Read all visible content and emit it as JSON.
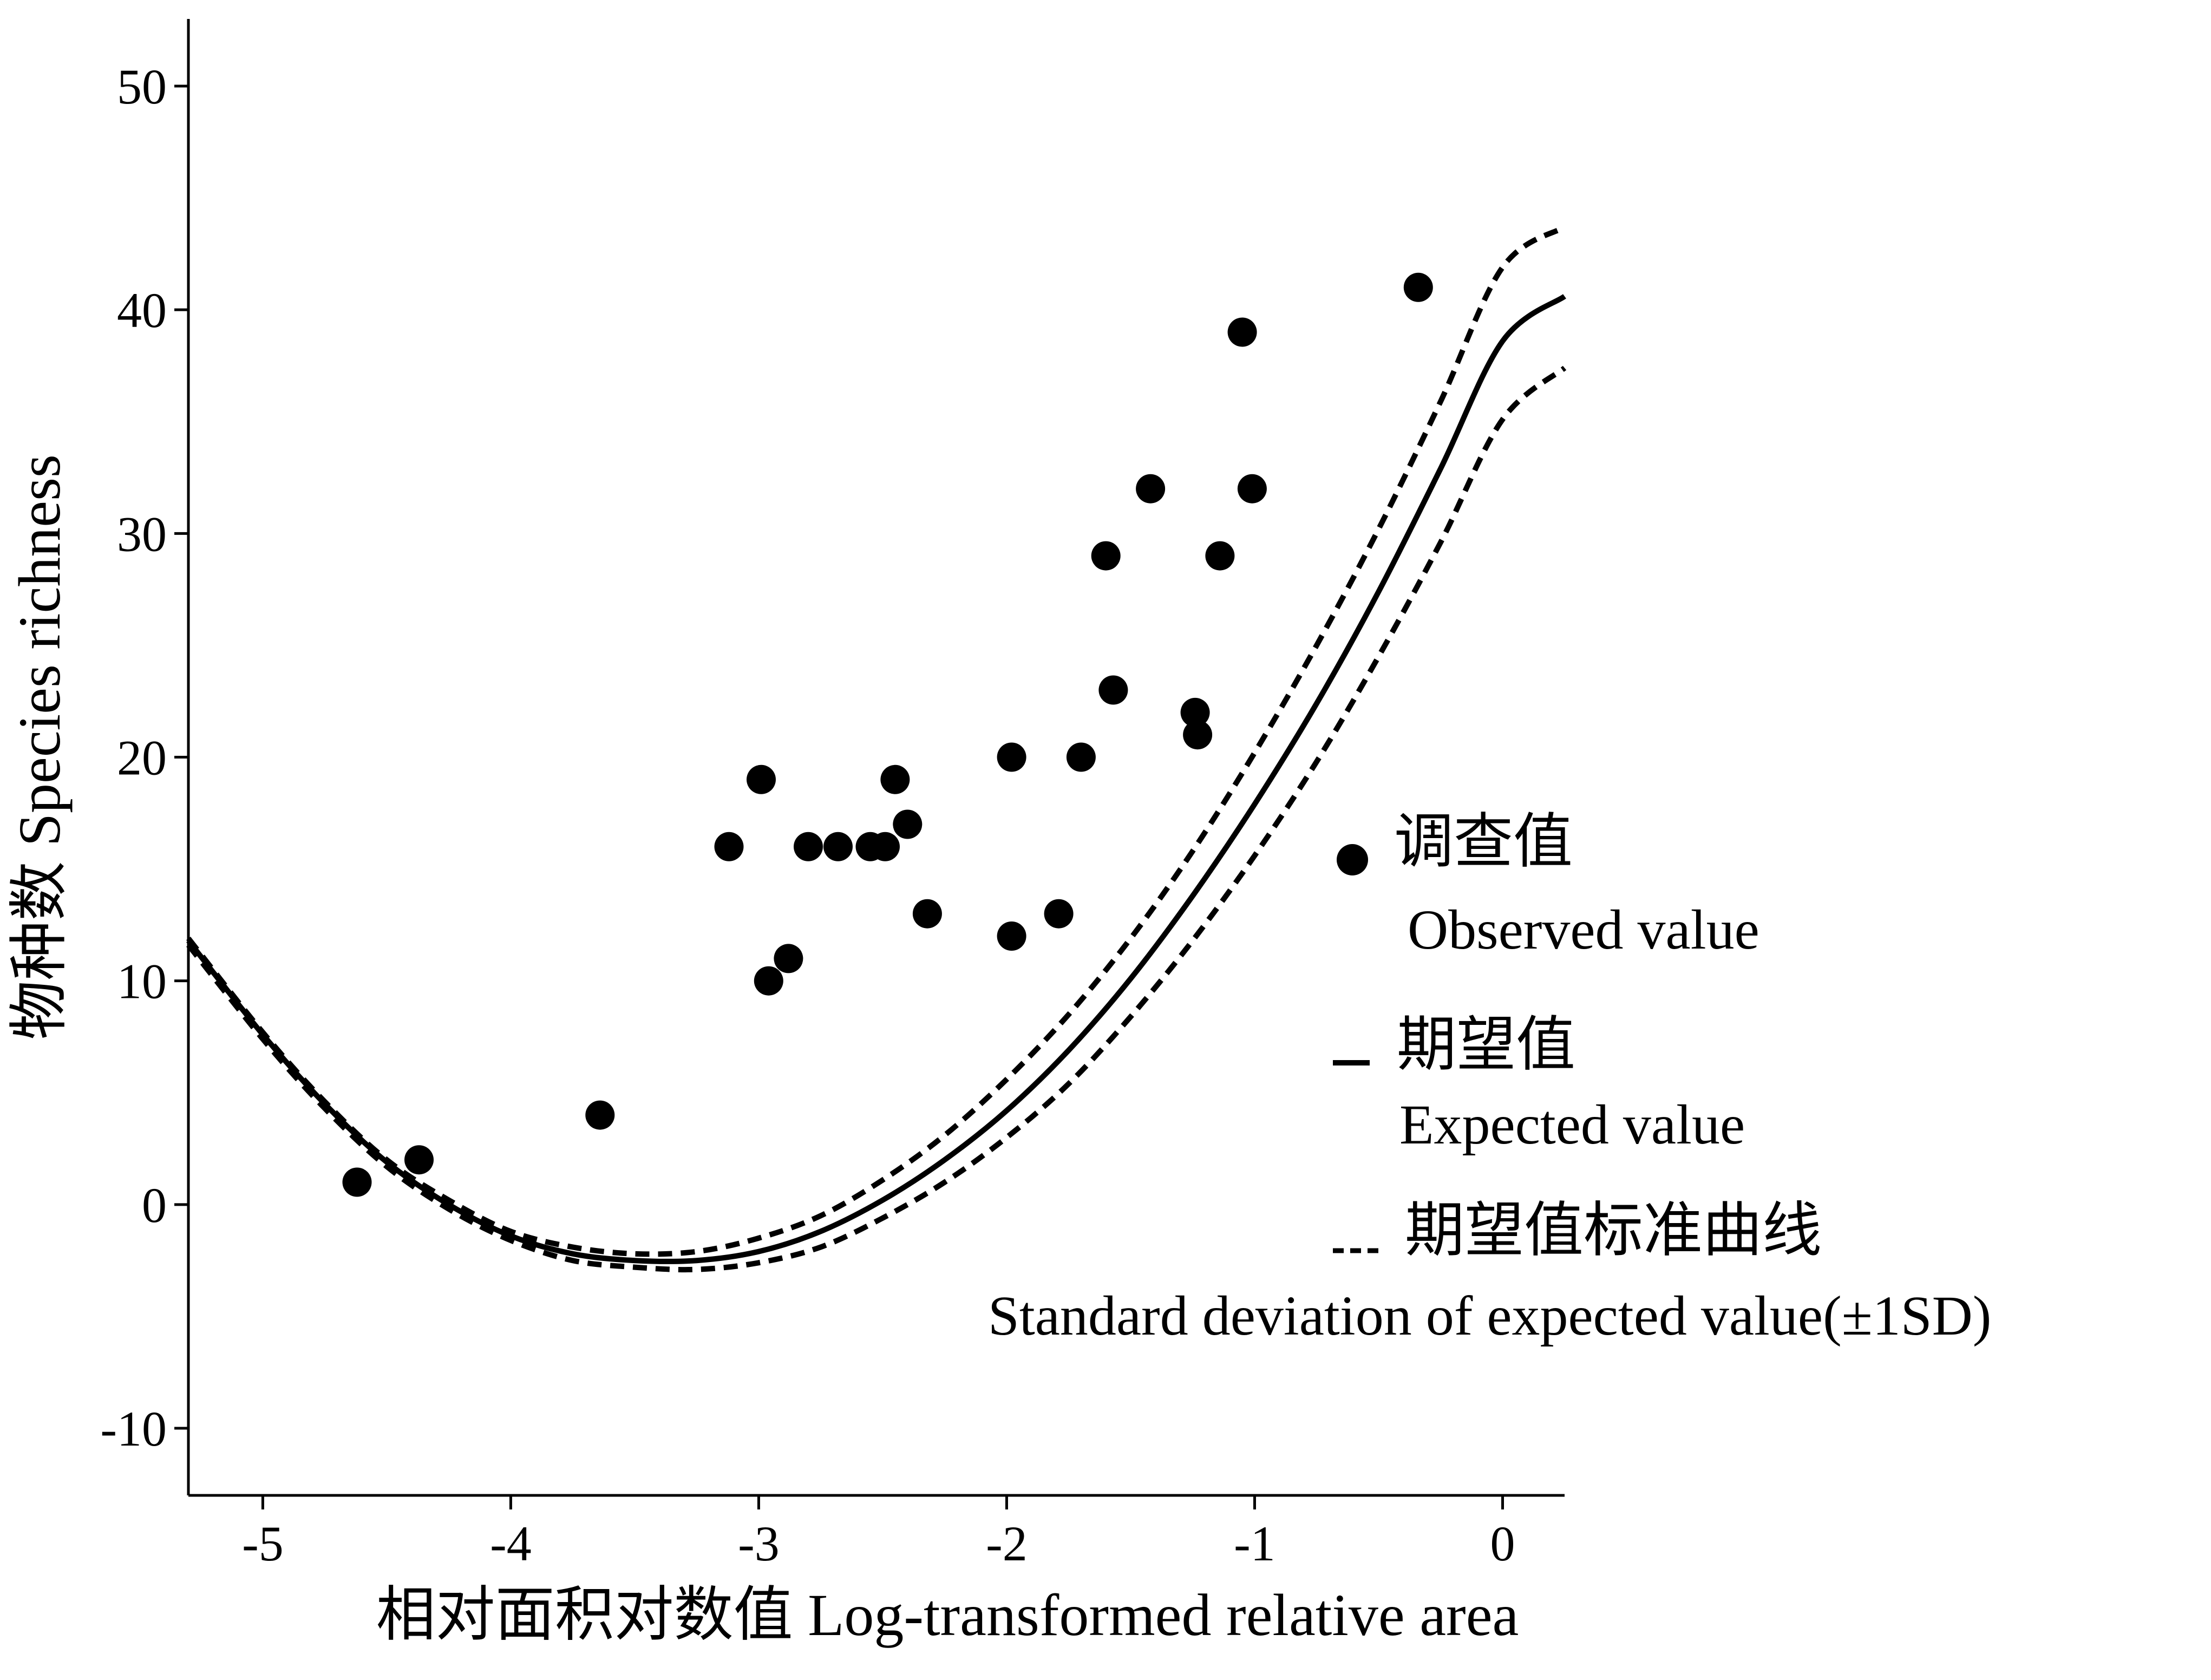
{
  "chart_data": {
    "type": "scatter",
    "title": "",
    "xlabel": "相对面积对数值  Log-transformed relative area",
    "ylabel": "物种数 Species richness",
    "xlim": [
      -5.3,
      0.25
    ],
    "ylim": [
      -13,
      53
    ],
    "xticks": [
      -5,
      -4,
      -3,
      -2,
      -1,
      0
    ],
    "xtick_labels": [
      "-5",
      "-4",
      "-3",
      "-2",
      "-1",
      "0"
    ],
    "yticks": [
      -10,
      0,
      10,
      20,
      30,
      40,
      50
    ],
    "ytick_labels": [
      "-10",
      "0",
      "10",
      "20",
      "30",
      "40",
      "50"
    ],
    "grid": false,
    "legend_position": "right",
    "observed": {
      "name": "调查值 Observed value",
      "x": [
        -4.62,
        -4.37,
        -3.64,
        -3.12,
        -2.99,
        -2.96,
        -2.88,
        -2.8,
        -2.68,
        -2.55,
        -2.49,
        -2.45,
        -2.4,
        -2.32,
        -1.98,
        -1.98,
        -1.79,
        -1.7,
        -1.6,
        -1.57,
        -1.42,
        -1.24,
        -1.23,
        -1.14,
        -1.05,
        -1.01,
        -0.34
      ],
      "y": [
        1,
        2,
        4,
        16,
        19,
        10,
        11,
        16,
        16,
        16,
        16,
        19,
        17,
        13,
        20,
        12,
        13,
        20,
        29,
        23,
        32,
        22,
        21,
        29,
        39,
        32,
        41
      ]
    },
    "expected": {
      "name": "期望值 Expected value",
      "type": "line",
      "style": "solid",
      "x": [
        -5.3,
        -5.0,
        -4.75,
        -4.5,
        -4.25,
        -4.0,
        -3.75,
        -3.5,
        -3.25,
        -3.0,
        -2.75,
        -2.5,
        -2.25,
        -2.0,
        -1.75,
        -1.5,
        -1.25,
        -1.0,
        -0.75,
        -0.5,
        -0.25,
        0.0,
        0.25
      ],
      "y": [
        11.8,
        7.6,
        4.5,
        1.9,
        0.0,
        -1.4,
        -2.2,
        -2.5,
        -2.5,
        -2.1,
        -1.2,
        0.2,
        2.0,
        4.2,
        6.9,
        10.1,
        13.8,
        17.9,
        22.4,
        27.4,
        32.9,
        38.6,
        40.6
      ]
    },
    "sd_upper": {
      "name": "期望值标准曲线 Standard deviation of expected value(±1SD)",
      "type": "line",
      "style": "dashed",
      "x": [
        -5.3,
        -5.0,
        -4.75,
        -4.5,
        -4.25,
        -4.0,
        -3.75,
        -3.5,
        -3.25,
        -3.0,
        -2.75,
        -2.5,
        -2.25,
        -2.0,
        -1.75,
        -1.5,
        -1.25,
        -1.0,
        -0.75,
        -0.5,
        -0.25,
        0.0,
        0.25
      ],
      "y": [
        11.9,
        7.7,
        4.6,
        2.0,
        0.2,
        -1.2,
        -1.9,
        -2.2,
        -2.1,
        -1.5,
        -0.5,
        1.1,
        3.1,
        5.6,
        8.5,
        11.9,
        15.8,
        20.2,
        25.0,
        30.2,
        35.9,
        41.9,
        43.7
      ]
    },
    "sd_lower": {
      "name": "期望值标准曲线 Standard deviation of expected value(±1SD)",
      "type": "line",
      "style": "dashed",
      "x": [
        -5.3,
        -5.0,
        -4.75,
        -4.5,
        -4.25,
        -4.0,
        -3.75,
        -3.5,
        -3.25,
        -3.0,
        -2.75,
        -2.5,
        -2.25,
        -2.0,
        -1.75,
        -1.5,
        -1.25,
        -1.0,
        -0.75,
        -0.5,
        -0.25,
        0.0,
        0.25
      ],
      "y": [
        11.6,
        7.4,
        4.3,
        1.7,
        -0.2,
        -1.6,
        -2.5,
        -2.8,
        -2.9,
        -2.6,
        -1.9,
        -0.6,
        1.0,
        3.0,
        5.4,
        8.4,
        11.8,
        15.6,
        19.8,
        24.5,
        29.6,
        35.1,
        37.4
      ]
    },
    "legend": {
      "observed_cn": "调查值",
      "observed_en": "Observed value",
      "expected_cn": "期望值",
      "expected_en": "Expected value",
      "sd_cn": "期望值标准曲线",
      "sd_en": "Standard deviation of expected value(±1SD)"
    }
  }
}
